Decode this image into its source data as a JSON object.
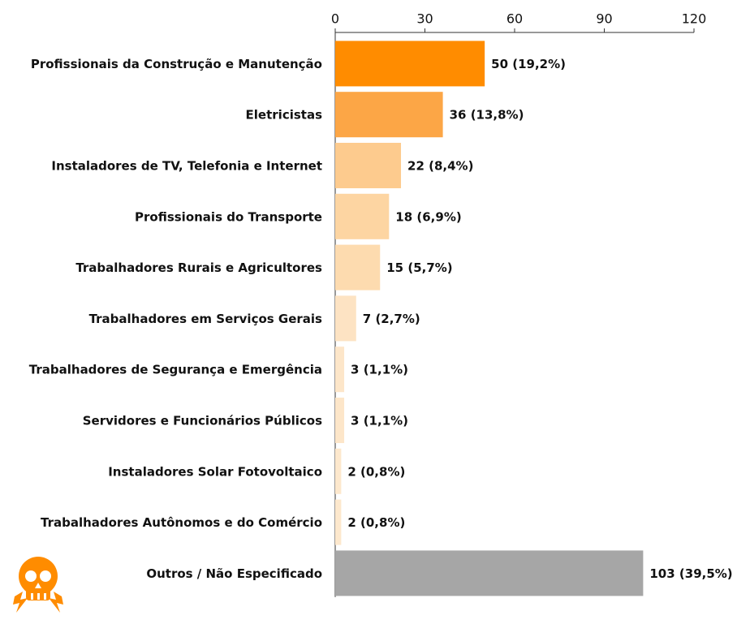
{
  "chart_data": {
    "type": "barh",
    "categories": [
      "Profissionais da Construção e Manutenção",
      "Eletricistas",
      "Instaladores de TV, Telefonia e Internet",
      "Profissionais do Transporte",
      "Trabalhadores Rurais e Agricultores",
      "Trabalhadores em Serviços Gerais",
      "Trabalhadores de Segurança e Emergência",
      "Servidores e Funcionários Públicos",
      "Instaladores Solar Fotovoltaico",
      "Trabalhadores Autônomos e do Comércio",
      "Outros / Não Especificado"
    ],
    "values": [
      50,
      36,
      22,
      18,
      15,
      7,
      3,
      3,
      2,
      2,
      103
    ],
    "value_labels": [
      "50 (19,2%)",
      "36 (13,8%)",
      "22 (8,4%)",
      "18 (6,9%)",
      "15 (5,7%)",
      "7 (2,7%)",
      "3 (1,1%)",
      "3 (1,1%)",
      "2 (0,8%)",
      "2 (0,8%)",
      "103 (39,5%)"
    ],
    "colors": [
      "#ff8c00",
      "#fca646",
      "#fdcb8e",
      "#fdd5a2",
      "#fddbaf",
      "#fde3c3",
      "#fde6c9",
      "#fde6c9",
      "#fde8cd",
      "#fde8cd",
      "#a6a6a6"
    ],
    "xlim": [
      0,
      120
    ],
    "xticks": [
      0,
      30,
      60,
      90,
      120
    ]
  }
}
